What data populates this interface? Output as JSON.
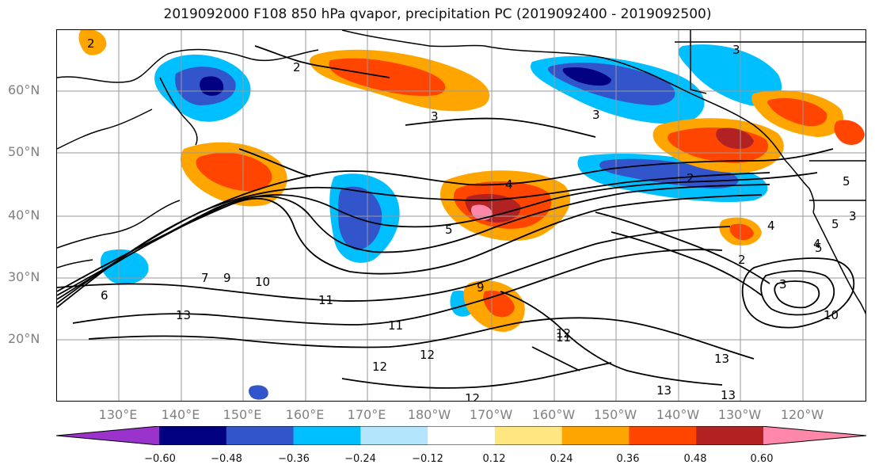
{
  "title": "2019092000 F108 850 hPa qvapor, precipitation PC (2019092400 - 2019092500)",
  "map": {
    "lat_labels": [
      "60°N",
      "50°N",
      "40°N",
      "30°N",
      "20°N"
    ],
    "lon_labels": [
      "130°E",
      "140°E",
      "150°E",
      "160°E",
      "170°E",
      "180°W",
      "170°W",
      "160°W",
      "150°W",
      "140°W",
      "130°W",
      "120°W"
    ],
    "contour_labels": [
      "2",
      "3",
      "3",
      "3",
      "2",
      "4",
      "5",
      "5",
      "4",
      "2",
      "2",
      "5",
      "5",
      "6",
      "7",
      "9",
      "10",
      "10",
      "11",
      "11",
      "13",
      "12",
      "12",
      "12",
      "13",
      "13",
      "9",
      "11",
      "12",
      "13",
      "3",
      "4",
      "3"
    ]
  },
  "colorbar": {
    "colors": [
      "#9933cc",
      "#000080",
      "#3355cc",
      "#00bfff",
      "#b3e5fc",
      "#ffffff",
      "#ffe680",
      "#ffa500",
      "#ff4500",
      "#b22222",
      "#ff88aa"
    ],
    "tick_labels": [
      "−0.60",
      "−0.48",
      "−0.36",
      "−0.24",
      "−0.12",
      "0.12",
      "0.24",
      "0.36",
      "0.48",
      "0.60"
    ]
  }
}
